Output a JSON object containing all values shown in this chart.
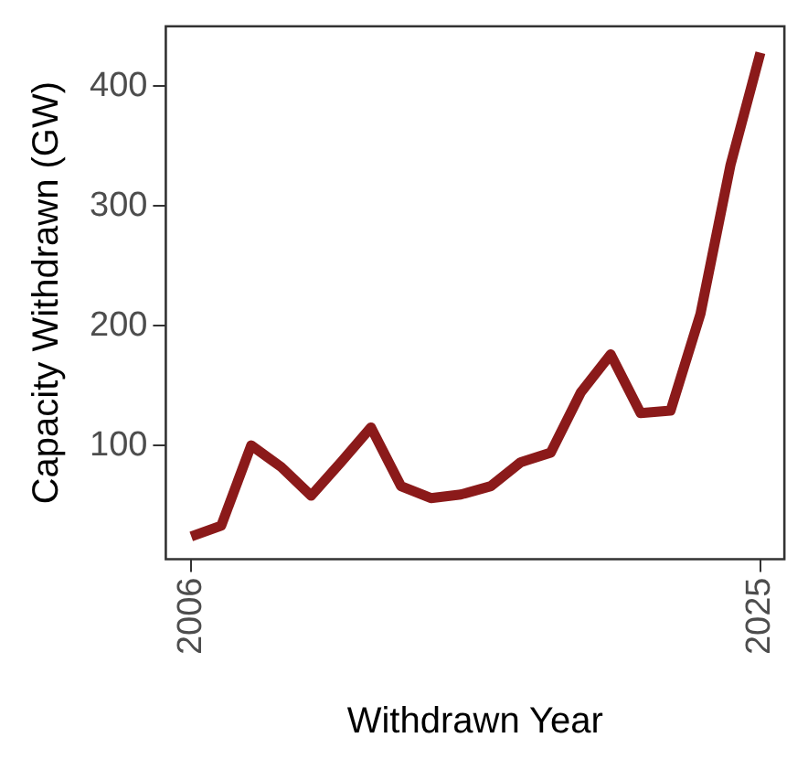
{
  "chart_data": {
    "type": "line",
    "xlabel": "Withdrawn Year",
    "ylabel": "Capacity Withdrawn (GW)",
    "x": [
      2006,
      2007,
      2008,
      2009,
      2010,
      2011,
      2012,
      2013,
      2014,
      2015,
      2016,
      2017,
      2018,
      2019,
      2020,
      2021,
      2022,
      2023,
      2024,
      2025
    ],
    "series": [
      {
        "color": "#8b1a1a",
        "values": [
          24,
          33,
          100,
          82,
          58,
          86,
          115,
          66,
          56,
          59,
          66,
          86,
          94,
          144,
          176,
          127,
          129,
          210,
          334,
          428
        ]
      }
    ],
    "xlim": [
      2005.15,
      2025.8
    ],
    "xticks": [
      2006,
      2025
    ],
    "ylim": [
      5,
      450
    ],
    "yticks": [
      100,
      200,
      300,
      400
    ],
    "grid": false,
    "legend": false,
    "marker": "none",
    "line_style": "solid"
  }
}
